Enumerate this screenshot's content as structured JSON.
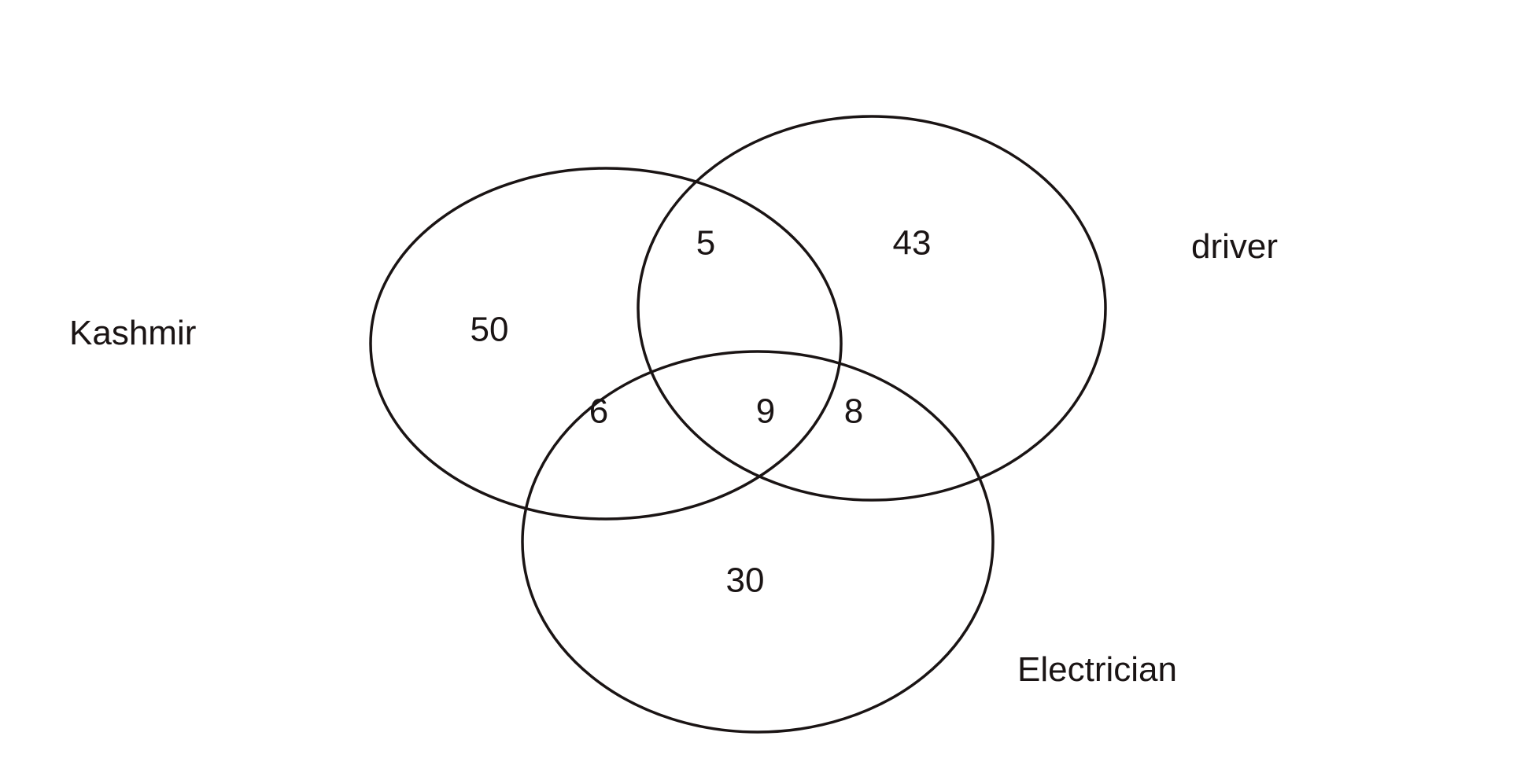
{
  "sets": {
    "kashmir": "Kashmir",
    "driver": "driver",
    "electrician": "Electrician"
  },
  "regions": {
    "kashmir_only": "50",
    "kashmir_driver": "5",
    "driver_only": "43",
    "kashmir_electrician": "6",
    "all_three": "9",
    "driver_electrician": "8",
    "electrician_only": "30"
  },
  "colors": {
    "stroke": "#1a1414",
    "text": "#1a1414",
    "background": "#ffffff"
  }
}
